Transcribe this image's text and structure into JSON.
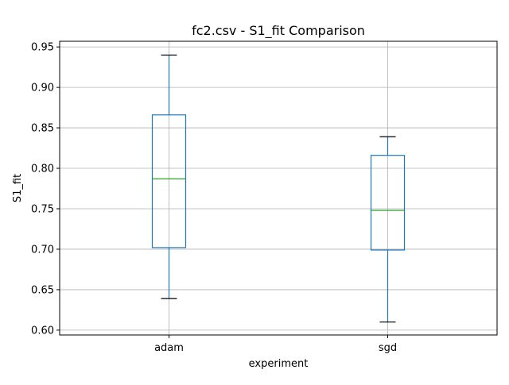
{
  "chart_data": {
    "type": "box",
    "title": "fc2.csv - S1_fit Comparison",
    "xlabel": "experiment",
    "ylabel": "S1_fit",
    "ylim": [
      0.594,
      0.957
    ],
    "yticks": [
      0.6,
      0.65,
      0.7,
      0.75,
      0.8,
      0.85,
      0.9,
      0.95
    ],
    "ytick_labels": [
      "0.60",
      "0.65",
      "0.70",
      "0.75",
      "0.80",
      "0.85",
      "0.90",
      "0.95"
    ],
    "grid": true,
    "categories": [
      "adam",
      "sgd"
    ],
    "boxes": [
      {
        "category": "adam",
        "whisker_low": 0.639,
        "q1": 0.702,
        "median": 0.787,
        "q3": 0.866,
        "whisker_high": 0.94
      },
      {
        "category": "sgd",
        "whisker_low": 0.61,
        "q1": 0.699,
        "median": 0.748,
        "q3": 0.816,
        "whisker_high": 0.839
      }
    ],
    "colors": {
      "box": "#1f77b4",
      "median": "#2ca02c",
      "caps": "#000000",
      "grid": "#b0b0b0",
      "axes": "#000000"
    }
  }
}
